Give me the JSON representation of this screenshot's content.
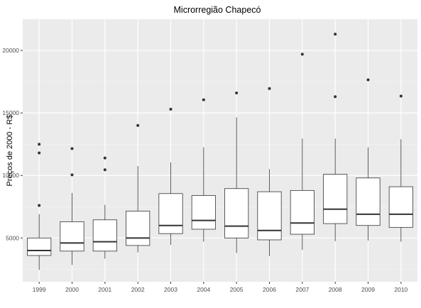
{
  "chart_data": {
    "type": "boxplot",
    "title": "Microrregião  Chapecó",
    "xlabel": "",
    "ylabel": "Preços de 2000 - R$",
    "ylim": [
      1500,
      22500
    ],
    "yticks": [
      5000,
      10000,
      15000,
      20000
    ],
    "ytick_labels": [
      "5000",
      "10000",
      "15000",
      "20000"
    ],
    "grid": true,
    "legend": "none",
    "colors": {
      "panel_bg": "#ebebeb",
      "grid_major": "#ffffff",
      "box_fill": "#ffffff",
      "box_line": "#333333",
      "outlier": "#333333",
      "tick_text": "#4d4d4d"
    },
    "categories": [
      "1999",
      "2000",
      "2001",
      "2002",
      "2003",
      "2004",
      "2005",
      "2006",
      "2007",
      "2008",
      "2009",
      "2010"
    ],
    "boxes": [
      {
        "category": "1999",
        "whisker_low": 2450,
        "q1": 3600,
        "median": 4000,
        "q3": 5000,
        "whisker_high": 6900,
        "outliers": [
          7600,
          11800,
          12500
        ]
      },
      {
        "category": "2000",
        "whisker_low": 2850,
        "q1": 3950,
        "median": 4600,
        "q3": 6300,
        "whisker_high": 8600,
        "outliers": [
          10050,
          12150
        ]
      },
      {
        "category": "2001",
        "whisker_low": 3350,
        "q1": 3950,
        "median": 4700,
        "q3": 6450,
        "whisker_high": 7650,
        "outliers": [
          10450,
          11400
        ]
      },
      {
        "category": "2002",
        "whisker_low": 3850,
        "q1": 4400,
        "median": 5000,
        "q3": 7150,
        "whisker_high": 10750,
        "outliers": [
          14000
        ]
      },
      {
        "category": "2003",
        "whisker_low": 4450,
        "q1": 5350,
        "median": 6000,
        "q3": 8550,
        "whisker_high": 11050,
        "outliers": [
          15300
        ]
      },
      {
        "category": "2004",
        "whisker_low": 4700,
        "q1": 5700,
        "median": 6400,
        "q3": 8400,
        "whisker_high": 12250,
        "outliers": [
          16050
        ]
      },
      {
        "category": "2005",
        "whisker_low": 3800,
        "q1": 5000,
        "median": 5950,
        "q3": 8950,
        "whisker_high": 14650,
        "outliers": [
          16600
        ]
      },
      {
        "category": "2006",
        "whisker_low": 3550,
        "q1": 4850,
        "median": 5600,
        "q3": 8700,
        "whisker_high": 10500,
        "outliers": [
          16950
        ]
      },
      {
        "category": "2007",
        "whisker_low": 4050,
        "q1": 5300,
        "median": 6200,
        "q3": 8800,
        "whisker_high": 12950,
        "outliers": [
          19700
        ]
      },
      {
        "category": "2008",
        "whisker_low": 4750,
        "q1": 6150,
        "median": 7300,
        "q3": 10100,
        "whisker_high": 12950,
        "outliers": [
          16300,
          21300
        ]
      },
      {
        "category": "2009",
        "whisker_low": 4800,
        "q1": 6000,
        "median": 6900,
        "q3": 9800,
        "whisker_high": 12250,
        "outliers": [
          17650
        ]
      },
      {
        "category": "2010",
        "whisker_low": 4700,
        "q1": 5850,
        "median": 6900,
        "q3": 9100,
        "whisker_high": 12900,
        "outliers": [
          16350
        ]
      }
    ]
  }
}
